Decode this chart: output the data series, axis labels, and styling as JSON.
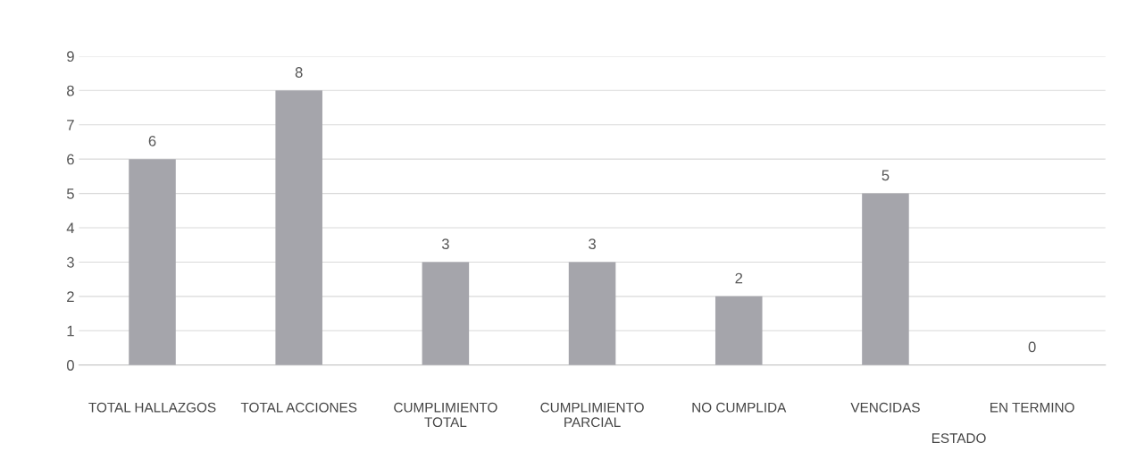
{
  "chart_data": {
    "type": "bar",
    "categories": [
      "TOTAL HALLAZGOS",
      "TOTAL ACCIONES",
      "CUMPLIMIENTO TOTAL",
      "CUMPLIMIENTO PARCIAL",
      "NO CUMPLIDA",
      "VENCIDAS",
      "EN TERMINO"
    ],
    "values": [
      6,
      8,
      3,
      3,
      2,
      5,
      0
    ],
    "color": "#a5a5ab",
    "ylim": [
      0,
      9
    ],
    "yticks": [
      0,
      1,
      2,
      3,
      4,
      5,
      6,
      7,
      8,
      9
    ],
    "grid": "y",
    "data_labels": true,
    "annotations": [
      "ESTADO"
    ]
  }
}
